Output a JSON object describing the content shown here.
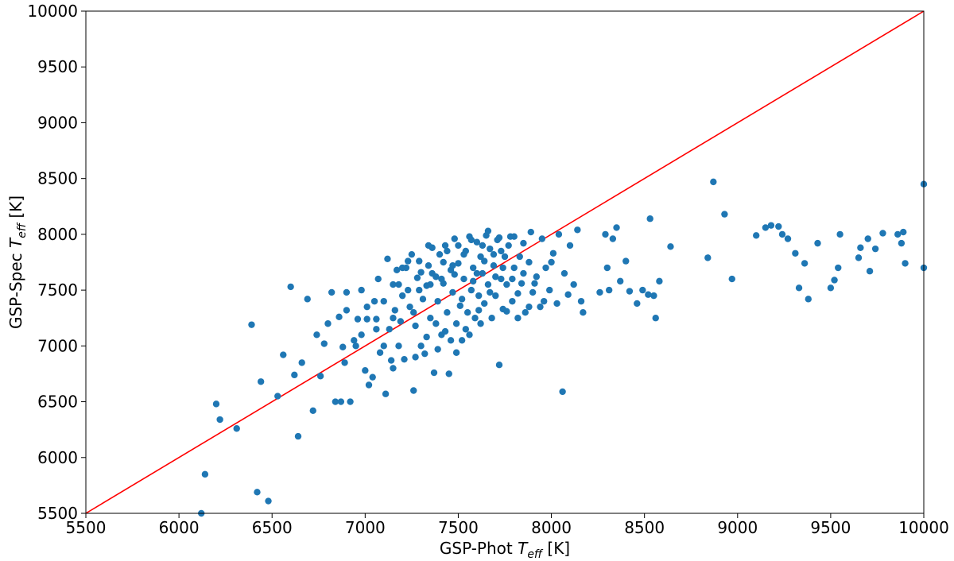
{
  "chart_data": {
    "type": "scatter",
    "title": "",
    "xlabel": {
      "prefix": "GSP-Phot ",
      "symbol": "T",
      "subscript": "eff",
      "suffix": " [K]"
    },
    "ylabel": {
      "prefix": "GSP-Spec ",
      "symbol": "T",
      "subscript": "eff",
      "suffix": " [K]"
    },
    "xlim": [
      5500,
      10000
    ],
    "ylim": [
      5500,
      10000
    ],
    "xticks": [
      5500,
      6000,
      6500,
      7000,
      7500,
      8000,
      8500,
      9000,
      9500,
      10000
    ],
    "yticks": [
      5500,
      6000,
      6500,
      7000,
      7500,
      8000,
      8500,
      9000,
      9500,
      10000
    ],
    "grid": false,
    "legend": "none",
    "colors": {
      "points": "#1f77b4",
      "identity_line": "#ff0000"
    },
    "reference_line": {
      "from": [
        5500,
        5500
      ],
      "to": [
        10000,
        10000
      ]
    },
    "series": [
      {
        "points": [
          [
            6120,
            5500
          ],
          [
            6140,
            5850
          ],
          [
            6200,
            6480
          ],
          [
            6220,
            6340
          ],
          [
            6310,
            6260
          ],
          [
            6390,
            7190
          ],
          [
            6420,
            5690
          ],
          [
            6440,
            6680
          ],
          [
            6480,
            5610
          ],
          [
            6530,
            6550
          ],
          [
            6560,
            6920
          ],
          [
            6600,
            7530
          ],
          [
            6620,
            6740
          ],
          [
            6640,
            6190
          ],
          [
            6660,
            6850
          ],
          [
            6690,
            7420
          ],
          [
            6720,
            6420
          ],
          [
            6740,
            7100
          ],
          [
            6760,
            6730
          ],
          [
            6780,
            7020
          ],
          [
            6800,
            7200
          ],
          [
            6820,
            7480
          ],
          [
            6840,
            6500
          ],
          [
            6860,
            7260
          ],
          [
            6870,
            6500
          ],
          [
            6880,
            6990
          ],
          [
            6890,
            6850
          ],
          [
            6900,
            7320
          ],
          [
            6920,
            6500
          ],
          [
            6940,
            7050
          ],
          [
            6960,
            7240
          ],
          [
            6980,
            7500
          ],
          [
            7000,
            6780
          ],
          [
            7010,
            7350
          ],
          [
            7020,
            6650
          ],
          [
            7040,
            6720
          ],
          [
            7060,
            7240
          ],
          [
            7070,
            7600
          ],
          [
            7080,
            6940
          ],
          [
            7100,
            7400
          ],
          [
            7110,
            6570
          ],
          [
            7120,
            7780
          ],
          [
            7130,
            7150
          ],
          [
            7140,
            6870
          ],
          [
            7150,
            7550
          ],
          [
            7160,
            7320
          ],
          [
            7170,
            7680
          ],
          [
            7180,
            7000
          ],
          [
            7190,
            7220
          ],
          [
            7200,
            7450
          ],
          [
            7210,
            6880
          ],
          [
            7220,
            7700
          ],
          [
            7230,
            7500
          ],
          [
            7240,
            7350
          ],
          [
            7250,
            7820
          ],
          [
            7260,
            6600
          ],
          [
            7270,
            7180
          ],
          [
            7280,
            7610
          ],
          [
            7290,
            7760
          ],
          [
            7300,
            7000
          ],
          [
            7310,
            7420
          ],
          [
            7320,
            6930
          ],
          [
            7330,
            7540
          ],
          [
            7340,
            7720
          ],
          [
            7350,
            7250
          ],
          [
            7360,
            7880
          ],
          [
            7370,
            6760
          ],
          [
            7380,
            7620
          ],
          [
            7390,
            7400
          ],
          [
            7400,
            7820
          ],
          [
            7410,
            7100
          ],
          [
            7420,
            7560
          ],
          [
            7430,
            7900
          ],
          [
            7440,
            7300
          ],
          [
            7450,
            6750
          ],
          [
            7460,
            7680
          ],
          [
            7470,
            7480
          ],
          [
            7480,
            7960
          ],
          [
            7490,
            7200
          ],
          [
            7500,
            7740
          ],
          [
            7510,
            7360
          ],
          [
            7520,
            7050
          ],
          [
            7530,
            7600
          ],
          [
            7540,
            7850
          ],
          [
            7550,
            7300
          ],
          [
            7560,
            7980
          ],
          [
            7570,
            7500
          ],
          [
            7580,
            7700
          ],
          [
            7590,
            7250
          ],
          [
            7600,
            7930
          ],
          [
            7610,
            7450
          ],
          [
            7620,
            7800
          ],
          [
            7630,
            7650
          ],
          [
            7640,
            7380
          ],
          [
            7650,
            7990
          ],
          [
            7660,
            7550
          ],
          [
            7670,
            7870
          ],
          [
            7680,
            7250
          ],
          [
            7690,
            7720
          ],
          [
            7700,
            7450
          ],
          [
            7710,
            7950
          ],
          [
            7720,
            6830
          ],
          [
            7730,
            7600
          ],
          [
            7740,
            7330
          ],
          [
            7750,
            7800
          ],
          [
            7760,
            7550
          ],
          [
            7780,
            7980
          ],
          [
            7790,
            7400
          ],
          [
            7800,
            7700
          ],
          [
            7820,
            7250
          ],
          [
            7840,
            7560
          ],
          [
            7850,
            7920
          ],
          [
            7860,
            7300
          ],
          [
            7880,
            7750
          ],
          [
            7890,
            8020
          ],
          [
            7900,
            7480
          ],
          [
            7920,
            7620
          ],
          [
            7940,
            7350
          ],
          [
            7950,
            7960
          ],
          [
            7970,
            7700
          ],
          [
            7990,
            7500
          ],
          [
            8010,
            7830
          ],
          [
            8030,
            7380
          ],
          [
            8040,
            8000
          ],
          [
            8060,
            6590
          ],
          [
            8070,
            7650
          ],
          [
            8090,
            7460
          ],
          [
            8100,
            7900
          ],
          [
            8120,
            7550
          ],
          [
            8140,
            8040
          ],
          [
            8160,
            7400
          ],
          [
            8170,
            7300
          ],
          [
            8260,
            7480
          ],
          [
            8290,
            8000
          ],
          [
            8300,
            7700
          ],
          [
            8310,
            7500
          ],
          [
            8330,
            7960
          ],
          [
            8350,
            8060
          ],
          [
            8370,
            7580
          ],
          [
            8400,
            7760
          ],
          [
            8420,
            7490
          ],
          [
            8460,
            7380
          ],
          [
            8490,
            7500
          ],
          [
            8520,
            7460
          ],
          [
            8530,
            8140
          ],
          [
            8550,
            7450
          ],
          [
            8560,
            7250
          ],
          [
            8580,
            7580
          ],
          [
            8640,
            7890
          ],
          [
            8840,
            7790
          ],
          [
            8870,
            8470
          ],
          [
            8930,
            8180
          ],
          [
            8970,
            7600
          ],
          [
            9100,
            7990
          ],
          [
            9150,
            8060
          ],
          [
            9180,
            8080
          ],
          [
            9220,
            8070
          ],
          [
            9240,
            8000
          ],
          [
            9270,
            7960
          ],
          [
            9310,
            7830
          ],
          [
            9330,
            7520
          ],
          [
            9360,
            7740
          ],
          [
            9380,
            7420
          ],
          [
            9430,
            7920
          ],
          [
            9500,
            7520
          ],
          [
            9520,
            7590
          ],
          [
            9540,
            7700
          ],
          [
            9550,
            8000
          ],
          [
            9650,
            7790
          ],
          [
            9660,
            7880
          ],
          [
            9700,
            7960
          ],
          [
            9710,
            7670
          ],
          [
            9740,
            7870
          ],
          [
            9780,
            8010
          ],
          [
            9860,
            8000
          ],
          [
            9880,
            7920
          ],
          [
            9890,
            8020
          ],
          [
            9900,
            7740
          ],
          [
            10000,
            8450
          ],
          [
            10000,
            7700
          ],
          [
            6900,
            7480
          ],
          [
            6980,
            7100
          ],
          [
            7050,
            7400
          ],
          [
            7150,
            7250
          ],
          [
            7200,
            7700
          ],
          [
            7260,
            7300
          ],
          [
            7300,
            7660
          ],
          [
            7350,
            7550
          ],
          [
            7380,
            7200
          ],
          [
            7420,
            7750
          ],
          [
            7460,
            7050
          ],
          [
            7480,
            7640
          ],
          [
            7520,
            7420
          ],
          [
            7540,
            7150
          ],
          [
            7580,
            7580
          ],
          [
            7610,
            7320
          ],
          [
            7640,
            7760
          ],
          [
            7670,
            7480
          ],
          [
            7700,
            7620
          ],
          [
            7730,
            7850
          ],
          [
            7760,
            7310
          ],
          [
            7790,
            7600
          ],
          [
            7820,
            7470
          ],
          [
            7850,
            7650
          ],
          [
            7880,
            7350
          ],
          [
            7910,
            7560
          ],
          [
            7960,
            7400
          ],
          [
            8000,
            7750
          ],
          [
            7150,
            6800
          ],
          [
            7270,
            6900
          ],
          [
            7330,
            7080
          ],
          [
            7390,
            6970
          ],
          [
            7430,
            7130
          ],
          [
            7490,
            6940
          ],
          [
            7560,
            7100
          ],
          [
            7620,
            7200
          ],
          [
            7100,
            7000
          ],
          [
            7060,
            7150
          ],
          [
            6950,
            7000
          ],
          [
            7010,
            7240
          ],
          [
            7180,
            7550
          ],
          [
            7230,
            7760
          ],
          [
            7290,
            7500
          ],
          [
            7340,
            7900
          ],
          [
            7360,
            7650
          ],
          [
            7410,
            7600
          ],
          [
            7440,
            7850
          ],
          [
            7470,
            7720
          ],
          [
            7500,
            7900
          ],
          [
            7530,
            7820
          ],
          [
            7570,
            7950
          ],
          [
            7600,
            7650
          ],
          [
            7630,
            7900
          ],
          [
            7660,
            8030
          ],
          [
            7690,
            7820
          ],
          [
            7720,
            7970
          ],
          [
            7740,
            7700
          ],
          [
            7770,
            7900
          ],
          [
            7800,
            7980
          ],
          [
            7830,
            7800
          ]
        ]
      }
    ]
  }
}
